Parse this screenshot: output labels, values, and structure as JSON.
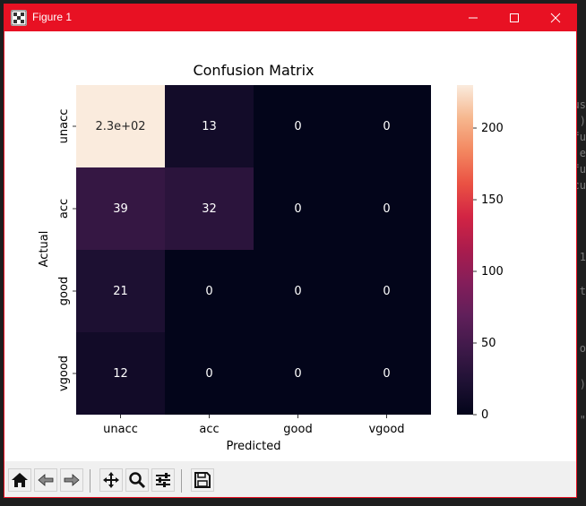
{
  "window": {
    "title": "Figure 1"
  },
  "chart_data": {
    "type": "heatmap",
    "title": "Confusion Matrix",
    "xlabel": "Predicted",
    "ylabel": "Actual",
    "x_categories": [
      "unacc",
      "acc",
      "good",
      "vgood"
    ],
    "y_categories": [
      "unacc",
      "acc",
      "good",
      "vgood"
    ],
    "values": [
      [
        230,
        13,
        0,
        0
      ],
      [
        39,
        32,
        0,
        0
      ],
      [
        21,
        0,
        0,
        0
      ],
      [
        12,
        0,
        0,
        0
      ]
    ],
    "cell_labels": [
      [
        "2.3e+02",
        "13",
        "0",
        "0"
      ],
      [
        "39",
        "32",
        "0",
        "0"
      ],
      [
        "21",
        "0",
        "0",
        "0"
      ],
      [
        "12",
        "0",
        "0",
        "0"
      ]
    ],
    "colorbar": {
      "min": 0,
      "max": 230,
      "ticks": [
        0,
        50,
        100,
        150,
        200
      ],
      "colormap": "rocket"
    },
    "annotation_colors": {
      "light_bg": "#262626",
      "dark_bg": "#ffffff"
    }
  },
  "toolbar": {
    "buttons": [
      "home-icon",
      "back-icon",
      "forward-icon",
      "pan-icon",
      "zoom-icon",
      "configure-subplots-icon",
      "save-icon"
    ]
  }
}
